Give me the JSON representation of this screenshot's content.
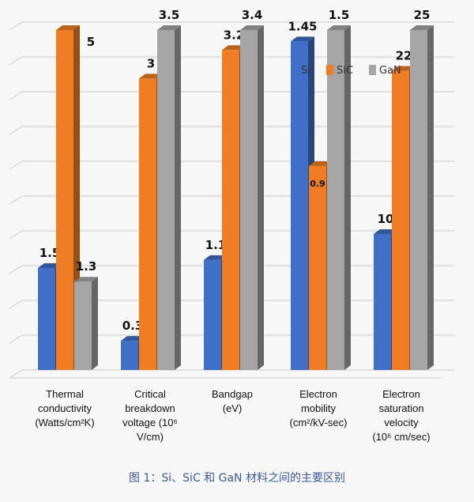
{
  "chart_data": {
    "type": "bar",
    "title": "",
    "xlabel": "",
    "ylabel": "",
    "categories": [
      "Thermal\nconductivity\n(Watts/cm²K)",
      "Critical\nbreakdown\nvoltage (10⁶\nV/cm)",
      "Bandgap\n(eV)",
      "Electron\nmobility\n(cm²/kV-sec)",
      "Electron\nsaturation\nvelocity\n(10⁶ cm/sec)"
    ],
    "series": [
      {
        "name": "Si",
        "color": "#3f6fc6",
        "values": [
          1.5,
          0.3,
          1.1,
          1.45,
          10
        ]
      },
      {
        "name": "SiC",
        "color": "#f07d23",
        "values": [
          5,
          3,
          3.2,
          0.9,
          22
        ]
      },
      {
        "name": "GaN",
        "color": "#a5a5a5",
        "values": [
          1.3,
          3.5,
          3.4,
          1.5,
          25
        ]
      }
    ],
    "value_labels": [
      [
        "1.5",
        "5",
        "1.3"
      ],
      [
        "0.3",
        "3",
        "3.5"
      ],
      [
        "1.1",
        "3.2",
        "3.4"
      ],
      [
        "1.45",
        "0.9",
        "1.5"
      ],
      [
        "10",
        "22",
        "25"
      ]
    ],
    "legend_position": "top-right",
    "grid": true
  },
  "caption": "图 1：Si、SiC 和 GaN 材料之间的主要区别"
}
